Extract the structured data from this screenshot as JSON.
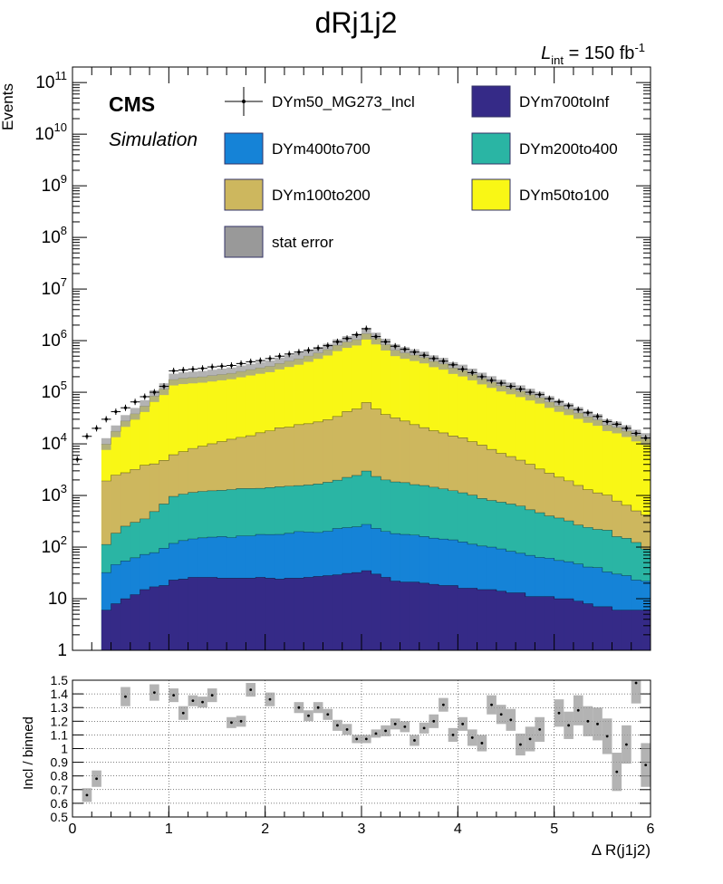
{
  "chart_data": [
    {
      "type": "stacked-histogram",
      "title": "dRj1j2",
      "lumi_label": {
        "symbol": "L",
        "subscript": "int",
        "value": " = 150 fb",
        "superscript": "-1"
      },
      "cms_label": "CMS",
      "sim_label": "Simulation",
      "ylabel": "Events",
      "xlim": [
        0,
        6
      ],
      "ylim": [
        1,
        200000000000
      ],
      "yscale": "log",
      "bin_width": 0.1,
      "x_bin_centers": [
        0.05,
        0.15,
        0.25,
        0.35,
        0.45,
        0.55,
        0.65,
        0.75,
        0.85,
        0.95,
        1.05,
        1.15,
        1.25,
        1.35,
        1.45,
        1.55,
        1.65,
        1.75,
        1.85,
        1.95,
        2.05,
        2.15,
        2.25,
        2.35,
        2.45,
        2.55,
        2.65,
        2.75,
        2.85,
        2.95,
        3.05,
        3.15,
        3.25,
        3.35,
        3.45,
        3.55,
        3.65,
        3.75,
        3.85,
        3.95,
        4.05,
        4.15,
        4.25,
        4.35,
        4.45,
        4.55,
        4.65,
        4.75,
        4.85,
        4.95,
        5.05,
        5.15,
        5.25,
        5.35,
        5.45,
        5.55,
        5.65,
        5.75,
        5.85,
        5.95
      ],
      "yticks": [
        "1",
        "10",
        "10^2",
        "10^3",
        "10^4",
        "10^5",
        "10^6",
        "10^7",
        "10^8",
        "10^9",
        "10^10",
        "10^11"
      ],
      "legend": [
        {
          "label": "DYm50_MG273_Incl",
          "style": "marker"
        },
        {
          "label": "DYm700toInf",
          "style": "fill",
          "color": "#352a87"
        },
        {
          "label": "DYm400to700",
          "style": "fill",
          "color": "#1583d7"
        },
        {
          "label": "DYm200to400",
          "style": "fill",
          "color": "#2ab5a4"
        },
        {
          "label": "DYm100to200",
          "style": "fill",
          "color": "#cdb75e"
        },
        {
          "label": "DYm50to100",
          "style": "fill",
          "color": "#f9f715"
        },
        {
          "label": "stat error",
          "style": "hatch"
        }
      ],
      "series": [
        {
          "name": "DYm700toInf",
          "color": "#352a87",
          "values": [
            0,
            0,
            0,
            6,
            8,
            10,
            12,
            15,
            17,
            18,
            23,
            24,
            26,
            26,
            26,
            25,
            25,
            25,
            25,
            26,
            25,
            24,
            25,
            25,
            26,
            27,
            28,
            29,
            31,
            32,
            35,
            30,
            26,
            22,
            21,
            21,
            20,
            19,
            18,
            18,
            16,
            16,
            15,
            15,
            14,
            13,
            13,
            11,
            11,
            11,
            10,
            10,
            9,
            8,
            7,
            7,
            6,
            6,
            6,
            6
          ]
        },
        {
          "name": "DYm400to700",
          "color": "#1583d7",
          "values": [
            0,
            0,
            0,
            26,
            38,
            44,
            50,
            57,
            61,
            77,
            95,
            110,
            118,
            125,
            130,
            135,
            128,
            140,
            140,
            150,
            150,
            152,
            160,
            175,
            170,
            165,
            175,
            200,
            207,
            215,
            240,
            200,
            175,
            160,
            155,
            150,
            140,
            130,
            125,
            120,
            110,
            98,
            90,
            85,
            78,
            70,
            63,
            58,
            52,
            50,
            45,
            42,
            38,
            33,
            33,
            26,
            24,
            22,
            17,
            16
          ]
        },
        {
          "name": "DYm200to400",
          "color": "#2ab5a4",
          "values": [
            0,
            0,
            0,
            80,
            140,
            200,
            240,
            280,
            410,
            590,
            840,
            930,
            1000,
            1050,
            1080,
            1100,
            1150,
            1200,
            1200,
            1200,
            1250,
            1300,
            1330,
            1350,
            1400,
            1480,
            1600,
            1750,
            2000,
            2200,
            2700,
            2100,
            1800,
            1650,
            1600,
            1450,
            1400,
            1300,
            1200,
            1100,
            1000,
            900,
            770,
            700,
            650,
            600,
            550,
            460,
            400,
            340,
            310,
            270,
            220,
            200,
            180,
            180,
            130,
            120,
            100,
            70
          ]
        },
        {
          "name": "DYm100to200",
          "color": "#cdb75e",
          "values": [
            0,
            0,
            0,
            1800,
            2300,
            2500,
            2900,
            3500,
            3600,
            4100,
            5200,
            6000,
            7000,
            7800,
            8800,
            9800,
            11000,
            12000,
            13000,
            15000,
            16500,
            19000,
            19500,
            22000,
            23000,
            25000,
            27500,
            32000,
            40000,
            45000,
            60000,
            45000,
            35000,
            30000,
            26000,
            22000,
            19000,
            16500,
            15000,
            13000,
            12000,
            10000,
            8600,
            7000,
            5800,
            5000,
            4200,
            3500,
            2800,
            2300,
            1900,
            1600,
            1300,
            1050,
            900,
            800,
            620,
            500,
            380,
            330
          ]
        },
        {
          "name": "DYm50to100",
          "color": "#f9f715",
          "values": [
            0,
            0,
            0,
            8000,
            15000,
            25000,
            35000,
            50000,
            80000,
            110000,
            170000,
            180000,
            185000,
            190000,
            200000,
            210000,
            220000,
            240000,
            260000,
            280000,
            300000,
            340000,
            380000,
            420000,
            480000,
            550000,
            640000,
            780000,
            900000,
            1000000,
            1300000,
            1050000,
            800000,
            620000,
            550000,
            500000,
            450000,
            380000,
            340000,
            280000,
            250000,
            210000,
            175000,
            150000,
            128000,
            113000,
            100000,
            86000,
            75000,
            62000,
            52000,
            45000,
            38000,
            32000,
            28000,
            22000,
            20000,
            17000,
            14000,
            12000
          ]
        },
        {
          "name": "DYm50_MG273_Incl",
          "style": "marker",
          "values": [
            5000,
            14000,
            20000,
            30000,
            42000,
            50000,
            65000,
            82000,
            100000,
            130000,
            260000,
            270000,
            280000,
            290000,
            310000,
            320000,
            330000,
            360000,
            390000,
            410000,
            450000,
            500000,
            550000,
            600000,
            650000,
            720000,
            800000,
            950000,
            1100000,
            1300000,
            1700000,
            1200000,
            950000,
            780000,
            680000,
            600000,
            520000,
            450000,
            400000,
            340000,
            280000,
            240000,
            200000,
            170000,
            150000,
            130000,
            115000,
            100000,
            90000,
            75000,
            65000,
            55000,
            46000,
            40000,
            34000,
            27000,
            24000,
            20000,
            16000,
            13000
          ]
        }
      ],
      "stat_error_band": "shaded grey band around stack sum"
    },
    {
      "type": "scatter",
      "xlabel": "Δ R(j1j2)",
      "ylabel": "Incl / binned",
      "xlim": [
        0,
        6
      ],
      "ylim": [
        0.5,
        1.5
      ],
      "xticks": [
        "0",
        "1",
        "2",
        "3",
        "4",
        "5",
        "6"
      ],
      "yticks": [
        "0.5",
        "0.6",
        "0.7",
        "0.8",
        "0.9",
        "1",
        "1.1",
        "1.2",
        "1.3",
        "1.4",
        "1.5"
      ],
      "grid": true,
      "x": [
        0.15,
        0.25,
        0.55,
        0.85,
        1.05,
        1.15,
        1.25,
        1.35,
        1.45,
        1.65,
        1.75,
        1.85,
        2.05,
        2.35,
        2.45,
        2.55,
        2.65,
        2.75,
        2.85,
        2.95,
        3.05,
        3.15,
        3.25,
        3.35,
        3.45,
        3.55,
        3.65,
        3.75,
        3.85,
        3.95,
        4.05,
        4.15,
        4.25,
        4.35,
        4.45,
        4.55,
        4.65,
        4.75,
        4.85,
        5.05,
        5.15,
        5.25,
        5.35,
        5.45,
        5.55,
        5.65,
        5.75,
        5.85,
        5.95
      ],
      "y": [
        0.66,
        0.78,
        1.38,
        1.41,
        1.39,
        1.26,
        1.35,
        1.34,
        1.39,
        1.19,
        1.2,
        1.43,
        1.36,
        1.3,
        1.24,
        1.3,
        1.25,
        1.17,
        1.14,
        1.07,
        1.07,
        1.11,
        1.13,
        1.18,
        1.16,
        1.06,
        1.15,
        1.2,
        1.32,
        1.1,
        1.18,
        1.08,
        1.04,
        1.32,
        1.25,
        1.21,
        1.03,
        1.07,
        1.14,
        1.26,
        1.17,
        1.28,
        1.2,
        1.18,
        1.09,
        0.83,
        1.03,
        1.48,
        0.88
      ],
      "error": [
        0.05,
        0.06,
        0.07,
        0.06,
        0.05,
        0.05,
        0.04,
        0.04,
        0.05,
        0.04,
        0.04,
        0.05,
        0.05,
        0.04,
        0.04,
        0.04,
        0.04,
        0.04,
        0.04,
        0.03,
        0.03,
        0.03,
        0.04,
        0.04,
        0.04,
        0.04,
        0.04,
        0.05,
        0.05,
        0.05,
        0.05,
        0.06,
        0.06,
        0.07,
        0.07,
        0.08,
        0.08,
        0.09,
        0.09,
        0.1,
        0.1,
        0.11,
        0.11,
        0.12,
        0.13,
        0.14,
        0.14,
        0.15,
        0.16
      ]
    }
  ]
}
